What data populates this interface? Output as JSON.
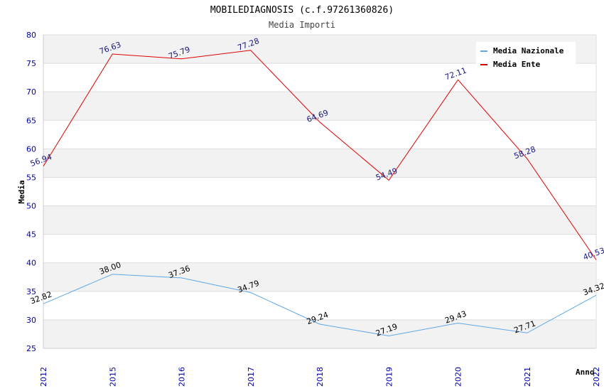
{
  "chart_data": {
    "type": "line",
    "title": "MOBILEDIAGNOSIS (c.f.97261360826)",
    "subtitle": "Media Importi",
    "xlabel": "Anno",
    "ylabel": "Media",
    "categories": [
      "2012",
      "2015",
      "2016",
      "2017",
      "2018",
      "2019",
      "2020",
      "2021",
      "2022"
    ],
    "ylim": [
      25,
      80
    ],
    "yticks": [
      25,
      30,
      35,
      40,
      45,
      50,
      55,
      60,
      65,
      70,
      75,
      80
    ],
    "grid": "horizontal-bands",
    "legend_position": "top-right",
    "series": [
      {
        "name": "Media Nazionale",
        "color": "#5fa8e8",
        "values": [
          32.82,
          38.0,
          37.36,
          34.79,
          29.24,
          27.19,
          29.43,
          27.71,
          34.32
        ],
        "labels": [
          "32.82",
          "38.00",
          "37.36",
          "34.79",
          "29.24",
          "27.19",
          "29.43",
          "27.71",
          "34.32"
        ]
      },
      {
        "name": "Media Ente",
        "color": "#dd0000",
        "values": [
          56.94,
          76.63,
          75.79,
          77.28,
          64.69,
          54.49,
          72.11,
          58.28,
          40.53
        ],
        "labels": [
          "56.94",
          "76.63",
          "75.79",
          "77.28",
          "64.69",
          "54.49",
          "72.11",
          "58.28",
          "40.53"
        ]
      }
    ]
  }
}
